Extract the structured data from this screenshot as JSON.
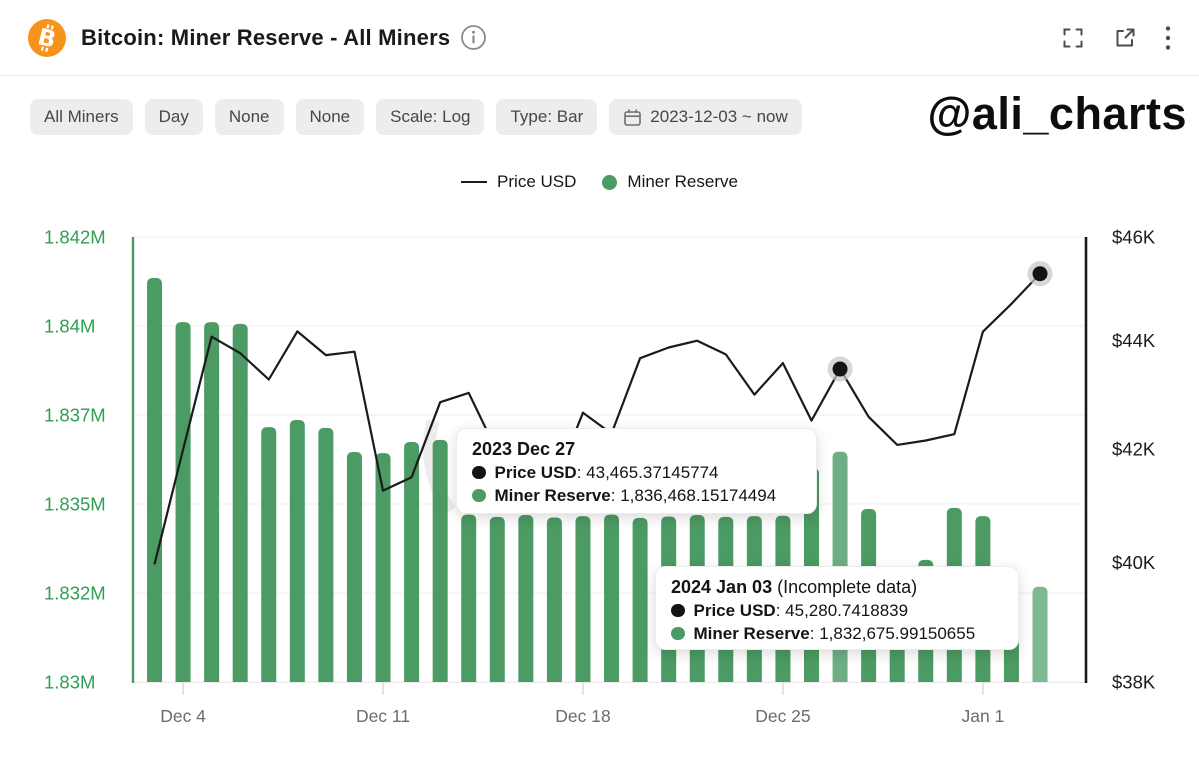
{
  "header": {
    "title": "Bitcoin: Miner Reserve - All Miners",
    "icons": [
      "bitcoin-logo",
      "info-icon",
      "fullscreen-icon",
      "open-external-icon",
      "kebab-menu-icon"
    ]
  },
  "toolbar": {
    "pills": [
      "All Miners",
      "Day",
      "None",
      "None",
      "Scale: Log",
      "Type: Bar"
    ],
    "date_range": "2023-12-03 ~ now"
  },
  "watermark": "@ali_charts",
  "legend": [
    {
      "label": "Price USD",
      "swatch": "line",
      "color": "#1b1b1b"
    },
    {
      "label": "Miner Reserve",
      "swatch": "dot",
      "color": "#4c9a64"
    }
  ],
  "chart_data": {
    "type": "bar",
    "title": "Bitcoin: Miner Reserve - All Miners",
    "x": [
      "2023-12-03",
      "2023-12-04",
      "2023-12-05",
      "2023-12-06",
      "2023-12-07",
      "2023-12-08",
      "2023-12-09",
      "2023-12-10",
      "2023-12-11",
      "2023-12-12",
      "2023-12-13",
      "2023-12-14",
      "2023-12-15",
      "2023-12-16",
      "2023-12-17",
      "2023-12-18",
      "2023-12-19",
      "2023-12-20",
      "2023-12-21",
      "2023-12-22",
      "2023-12-23",
      "2023-12-24",
      "2023-12-25",
      "2023-12-26",
      "2023-12-27",
      "2023-12-28",
      "2023-12-29",
      "2023-12-30",
      "2023-12-31",
      "2024-01-01",
      "2024-01-02",
      "2024-01-03"
    ],
    "series": [
      {
        "name": "Miner Reserve",
        "type": "bar",
        "axis": "left",
        "values": [
          1841350,
          1840110,
          1840110,
          1840060,
          1837160,
          1837360,
          1837140,
          1836460,
          1836430,
          1836740,
          1836800,
          1834700,
          1834640,
          1834690,
          1834620,
          1834660,
          1834700,
          1834610,
          1834650,
          1834690,
          1834640,
          1834660,
          1834670,
          1836010,
          1836468.15174494,
          1834860,
          1832950,
          1833430,
          1834890,
          1834660,
          1832950,
          1832675.99150655
        ]
      },
      {
        "name": "Price USD",
        "type": "line",
        "axis": "right",
        "values": [
          39970,
          41990,
          44073,
          43762,
          43270,
          44173,
          43725,
          43789,
          41254,
          41492,
          42850,
          43022,
          41940,
          42278,
          41374,
          42657,
          42276,
          43668,
          43869,
          43997,
          43739,
          42991,
          43576,
          42514,
          43465.37145774,
          42582,
          42072,
          42152,
          42265,
          44167,
          44700,
          45280.7418839
        ]
      }
    ],
    "left_axis": {
      "title": "Miner Reserve",
      "scale": "log",
      "min": 1830000,
      "max": 1842500,
      "ticks": [
        1842500,
        1840000,
        1837500,
        1835000,
        1832500,
        1830000
      ],
      "tick_labels": [
        "1.842M",
        "1.84M",
        "1.837M",
        "1.835M",
        "1.832M",
        "1.83M"
      ]
    },
    "right_axis": {
      "title": "Price USD",
      "scale": "log",
      "min": 38000,
      "max": 46000,
      "ticks": [
        46000,
        44000,
        42000,
        40000,
        38000
      ],
      "tick_labels": [
        "$46K",
        "$44K",
        "$42K",
        "$40K",
        "$38K"
      ]
    },
    "x_ticks": {
      "day_index": [
        1,
        8,
        15,
        22,
        29
      ],
      "labels": [
        "Dec 4",
        "Dec 11",
        "Dec 18",
        "Dec 25",
        "Jan 1"
      ]
    },
    "markers": {
      "day_index": [
        24,
        31
      ]
    },
    "highlight": {
      "hover_day_index": 24,
      "incomplete_day_index": 31
    },
    "grid": "horizontal-only",
    "legend_position": "top-center",
    "colors": {
      "bar": "#4c9a64",
      "bar_hover": "#6fae85",
      "bar_incomplete": "#7cb890",
      "line": "#1b1b1b",
      "grid": "#f2f2f2",
      "left_axis_line": "#4c9a64",
      "right_axis_line": "#1b1b1b",
      "left_label": "#2f9e53",
      "right_label": "#1b1b1b",
      "x_label": "#6b6b74",
      "tick": "#d9d9d9",
      "marker_halo": "#c6c6c6",
      "marker_dot": "#141414",
      "bitcoin_orange": "#f7931a"
    }
  },
  "tooltips": [
    {
      "title": "2023 Dec 27",
      "suffix": "",
      "rows": [
        {
          "dot": "#141414",
          "label": "Price USD",
          "value": "43,465.37145774"
        },
        {
          "dot": "#4c9a64",
          "label": "Miner Reserve",
          "value": "1,836,468.15174494"
        }
      ]
    },
    {
      "title": "2024 Jan 03",
      "suffix": " (Incomplete data)",
      "rows": [
        {
          "dot": "#141414",
          "label": "Price USD",
          "value": "45,280.7418839"
        },
        {
          "dot": "#4c9a64",
          "label": "Miner Reserve",
          "value": "1,832,675.99150655"
        }
      ]
    }
  ]
}
